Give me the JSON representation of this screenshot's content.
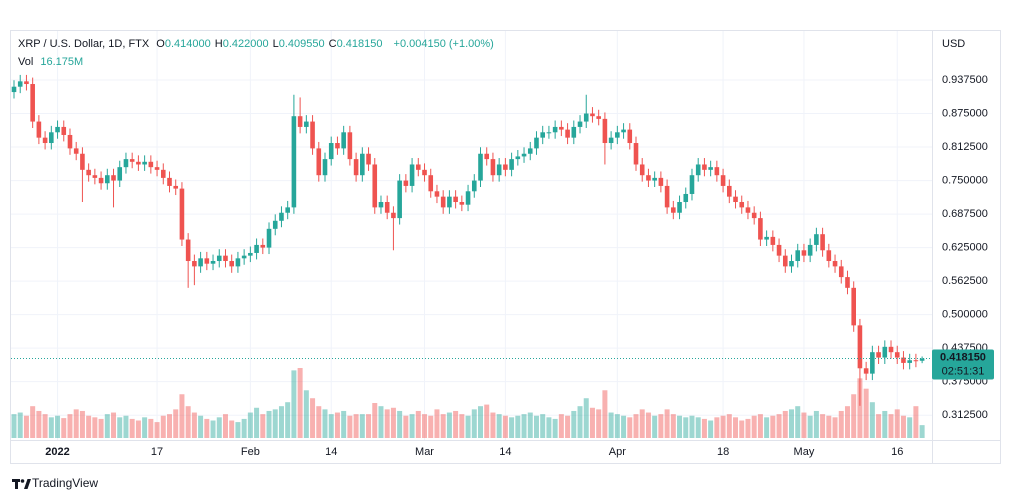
{
  "chart_data": {
    "type": "candlestick",
    "title": "XRP / U.S. Dollar, 1D, FTX",
    "ohlc_legend": [
      {
        "key": "O",
        "value": "0.414000"
      },
      {
        "key": "H",
        "value": "0.422000"
      },
      {
        "key": "L",
        "value": "0.409550"
      },
      {
        "key": "C",
        "value": "0.418150"
      }
    ],
    "change": "+0.004150 (+1.00%)",
    "volume_name": "Vol",
    "volume_label": "16.175M",
    "axis_currency": "USD",
    "last_price_label": "0.418150",
    "countdown": "02:51:31",
    "brand": "TradingView",
    "up_color": "#26a69a",
    "down_color": "#ef5350",
    "grid": true,
    "categories": [
      null,
      null,
      null,
      null,
      null,
      null,
      null,
      "2022",
      null,
      null,
      null,
      null,
      null,
      null,
      null,
      null,
      null,
      null,
      null,
      null,
      null,
      null,
      null,
      "17",
      null,
      null,
      null,
      null,
      null,
      null,
      null,
      null,
      null,
      null,
      null,
      null,
      null,
      null,
      "Feb",
      null,
      null,
      null,
      null,
      null,
      null,
      null,
      null,
      null,
      null,
      null,
      null,
      "14",
      null,
      null,
      null,
      null,
      null,
      null,
      null,
      null,
      null,
      null,
      null,
      null,
      null,
      null,
      "Mar",
      null,
      null,
      null,
      null,
      null,
      null,
      null,
      null,
      null,
      null,
      null,
      null,
      "14",
      null,
      null,
      null,
      null,
      null,
      null,
      null,
      null,
      null,
      null,
      null,
      null,
      null,
      null,
      null,
      null,
      null,
      "Apr",
      null,
      null,
      null,
      null,
      null,
      null,
      null,
      null,
      null,
      null,
      null,
      null,
      null,
      null,
      null,
      null,
      "18",
      null,
      null,
      null,
      null,
      null,
      null,
      null,
      null,
      null,
      null,
      null,
      null,
      "May",
      null,
      null,
      null,
      null,
      null,
      null,
      null,
      null,
      null,
      null,
      null,
      null,
      null,
      null,
      "16",
      null,
      null,
      null,
      null
    ],
    "open": [
      0.915,
      0.925,
      0.935,
      0.93,
      0.86,
      0.83,
      0.82,
      0.84,
      0.85,
      0.835,
      0.81,
      0.8,
      0.77,
      0.76,
      0.755,
      0.745,
      0.76,
      0.75,
      0.775,
      0.79,
      0.785,
      0.78,
      0.785,
      0.775,
      0.77,
      0.755,
      0.74,
      0.735,
      0.64,
      0.6,
      0.59,
      0.605,
      0.595,
      0.6,
      0.61,
      0.6,
      0.59,
      0.605,
      0.61,
      0.615,
      0.63,
      0.625,
      0.66,
      0.675,
      0.69,
      0.7,
      0.87,
      0.85,
      0.86,
      0.81,
      0.76,
      0.79,
      0.82,
      0.81,
      0.84,
      0.79,
      0.76,
      0.8,
      0.78,
      0.7,
      0.71,
      0.69,
      0.68,
      0.75,
      0.74,
      0.78,
      0.77,
      0.76,
      0.73,
      0.72,
      0.7,
      0.72,
      0.71,
      0.705,
      0.73,
      0.75,
      0.8,
      0.79,
      0.76,
      0.78,
      0.77,
      0.79,
      0.795,
      0.8,
      0.81,
      0.83,
      0.84,
      0.84,
      0.85,
      0.845,
      0.83,
      0.85,
      0.86,
      0.875,
      0.87,
      0.865,
      0.82,
      0.83,
      0.84,
      0.845,
      0.82,
      0.78,
      0.76,
      0.75,
      0.755,
      0.74,
      0.7,
      0.69,
      0.71,
      0.725,
      0.76,
      0.78,
      0.77,
      0.775,
      0.76,
      0.74,
      0.72,
      0.71,
      0.7,
      0.69,
      0.68,
      0.64,
      0.645,
      0.63,
      0.61,
      0.59,
      0.6,
      0.62,
      0.61,
      0.63,
      0.65,
      0.62,
      0.6,
      0.59,
      0.57,
      0.55,
      0.48,
      0.4,
      0.39,
      0.43,
      0.42,
      0.44,
      0.43,
      0.42,
      0.41,
      0.415,
      0.414
    ],
    "high": [
      0.937,
      0.947,
      0.947,
      0.942,
      0.872,
      0.842,
      0.852,
      0.862,
      0.862,
      0.847,
      0.822,
      0.812,
      0.782,
      0.772,
      0.767,
      0.772,
      0.772,
      0.787,
      0.802,
      0.802,
      0.797,
      0.797,
      0.797,
      0.787,
      0.782,
      0.767,
      0.752,
      0.747,
      0.652,
      0.612,
      0.617,
      0.617,
      0.612,
      0.622,
      0.622,
      0.612,
      0.617,
      0.622,
      0.627,
      0.642,
      0.642,
      0.672,
      0.687,
      0.702,
      0.712,
      0.91,
      0.905,
      0.872,
      0.872,
      0.822,
      0.802,
      0.832,
      0.832,
      0.852,
      0.852,
      0.802,
      0.812,
      0.812,
      0.792,
      0.722,
      0.722,
      0.702,
      0.762,
      0.762,
      0.792,
      0.792,
      0.782,
      0.772,
      0.742,
      0.732,
      0.732,
      0.732,
      0.722,
      0.742,
      0.762,
      0.812,
      0.812,
      0.802,
      0.792,
      0.792,
      0.802,
      0.807,
      0.812,
      0.822,
      0.842,
      0.852,
      0.852,
      0.862,
      0.862,
      0.857,
      0.862,
      0.872,
      0.91,
      0.887,
      0.882,
      0.877,
      0.842,
      0.852,
      0.857,
      0.857,
      0.832,
      0.792,
      0.772,
      0.767,
      0.767,
      0.752,
      0.712,
      0.722,
      0.737,
      0.772,
      0.792,
      0.792,
      0.787,
      0.787,
      0.772,
      0.752,
      0.732,
      0.722,
      0.712,
      0.702,
      0.692,
      0.657,
      0.657,
      0.642,
      0.622,
      0.612,
      0.632,
      0.632,
      0.642,
      0.662,
      0.662,
      0.632,
      0.612,
      0.602,
      0.582,
      0.562,
      0.492,
      0.412,
      0.442,
      0.442,
      0.452,
      0.452,
      0.442,
      0.432,
      0.427,
      0.427,
      0.422
    ],
    "low": [
      0.903,
      0.913,
      0.918,
      0.848,
      0.818,
      0.808,
      0.808,
      0.828,
      0.823,
      0.798,
      0.788,
      0.71,
      0.748,
      0.743,
      0.733,
      0.733,
      0.7,
      0.738,
      0.763,
      0.773,
      0.768,
      0.768,
      0.763,
      0.758,
      0.743,
      0.728,
      0.723,
      0.628,
      0.55,
      0.555,
      0.578,
      0.583,
      0.583,
      0.588,
      0.588,
      0.578,
      0.578,
      0.593,
      0.598,
      0.603,
      0.613,
      0.613,
      0.648,
      0.663,
      0.678,
      0.688,
      0.838,
      0.838,
      0.798,
      0.748,
      0.748,
      0.778,
      0.798,
      0.798,
      0.778,
      0.748,
      0.748,
      0.768,
      0.688,
      0.688,
      0.678,
      0.62,
      0.668,
      0.728,
      0.728,
      0.758,
      0.748,
      0.718,
      0.708,
      0.688,
      0.688,
      0.698,
      0.693,
      0.693,
      0.718,
      0.738,
      0.778,
      0.748,
      0.748,
      0.758,
      0.758,
      0.778,
      0.783,
      0.788,
      0.798,
      0.818,
      0.828,
      0.828,
      0.833,
      0.818,
      0.818,
      0.838,
      0.848,
      0.858,
      0.853,
      0.78,
      0.808,
      0.818,
      0.828,
      0.808,
      0.768,
      0.748,
      0.738,
      0.738,
      0.728,
      0.688,
      0.678,
      0.678,
      0.698,
      0.713,
      0.748,
      0.758,
      0.758,
      0.748,
      0.728,
      0.708,
      0.698,
      0.688,
      0.678,
      0.668,
      0.628,
      0.628,
      0.618,
      0.598,
      0.578,
      0.578,
      0.588,
      0.598,
      0.598,
      0.618,
      0.608,
      0.588,
      0.578,
      0.558,
      0.538,
      0.468,
      0.33,
      0.378,
      0.378,
      0.408,
      0.408,
      0.418,
      0.408,
      0.398,
      0.398,
      0.402,
      0.40955
    ],
    "close": [
      0.925,
      0.935,
      0.93,
      0.86,
      0.83,
      0.82,
      0.84,
      0.85,
      0.835,
      0.81,
      0.8,
      0.77,
      0.76,
      0.755,
      0.745,
      0.76,
      0.75,
      0.775,
      0.79,
      0.785,
      0.78,
      0.785,
      0.775,
      0.77,
      0.755,
      0.74,
      0.735,
      0.64,
      0.6,
      0.59,
      0.605,
      0.595,
      0.6,
      0.61,
      0.6,
      0.59,
      0.605,
      0.61,
      0.615,
      0.63,
      0.625,
      0.66,
      0.675,
      0.69,
      0.7,
      0.87,
      0.85,
      0.86,
      0.81,
      0.76,
      0.79,
      0.82,
      0.81,
      0.84,
      0.79,
      0.76,
      0.8,
      0.78,
      0.7,
      0.71,
      0.69,
      0.68,
      0.75,
      0.74,
      0.78,
      0.77,
      0.76,
      0.73,
      0.72,
      0.7,
      0.72,
      0.71,
      0.705,
      0.73,
      0.75,
      0.8,
      0.79,
      0.76,
      0.78,
      0.77,
      0.79,
      0.795,
      0.8,
      0.81,
      0.83,
      0.84,
      0.84,
      0.85,
      0.845,
      0.83,
      0.85,
      0.86,
      0.875,
      0.87,
      0.865,
      0.82,
      0.83,
      0.84,
      0.845,
      0.82,
      0.78,
      0.76,
      0.75,
      0.755,
      0.74,
      0.7,
      0.69,
      0.71,
      0.725,
      0.76,
      0.78,
      0.77,
      0.775,
      0.76,
      0.74,
      0.72,
      0.71,
      0.7,
      0.69,
      0.68,
      0.64,
      0.645,
      0.63,
      0.61,
      0.59,
      0.6,
      0.62,
      0.61,
      0.63,
      0.65,
      0.62,
      0.6,
      0.59,
      0.57,
      0.55,
      0.48,
      0.4,
      0.39,
      0.43,
      0.42,
      0.44,
      0.43,
      0.42,
      0.41,
      0.415,
      0.414,
      0.41815
    ],
    "volume": [
      30,
      32,
      28,
      40,
      34,
      30,
      26,
      28,
      25,
      30,
      36,
      34,
      28,
      26,
      24,
      30,
      32,
      26,
      28,
      24,
      22,
      26,
      24,
      20,
      28,
      30,
      36,
      55,
      40,
      32,
      28,
      24,
      22,
      26,
      30,
      22,
      20,
      24,
      32,
      38,
      30,
      34,
      36,
      40,
      45,
      85,
      88,
      60,
      50,
      40,
      36,
      30,
      32,
      34,
      28,
      30,
      30,
      30,
      44,
      40,
      36,
      38,
      34,
      28,
      30,
      34,
      30,
      28,
      36,
      30,
      32,
      34,
      30,
      28,
      36,
      40,
      42,
      32,
      30,
      28,
      26,
      28,
      30,
      32,
      28,
      30,
      26,
      24,
      30,
      28,
      34,
      40,
      50,
      38,
      36,
      60,
      32,
      30,
      28,
      26,
      30,
      36,
      32,
      28,
      30,
      36,
      30,
      28,
      26,
      28,
      26,
      24,
      22,
      26,
      28,
      30,
      26,
      22,
      24,
      28,
      30,
      26,
      28,
      30,
      34,
      36,
      40,
      32,
      28,
      34,
      30,
      28,
      26,
      34,
      40,
      55,
      75,
      62,
      45,
      30,
      34,
      30,
      36,
      28,
      26,
      40,
      16.175
    ],
    "ylim": [
      0.27,
      1.027
    ],
    "yticks": [
      {
        "value": 0.3125,
        "label": "0.312500"
      },
      {
        "value": 0.375,
        "label": "0.375000"
      },
      {
        "value": 0.4375,
        "label": "0.437500"
      },
      {
        "value": 0.5,
        "label": "0.500000"
      },
      {
        "value": 0.5625,
        "label": "0.562500"
      },
      {
        "value": 0.625,
        "label": "0.625000"
      },
      {
        "value": 0.6875,
        "label": "0.687500"
      },
      {
        "value": 0.75,
        "label": "0.750000"
      },
      {
        "value": 0.8125,
        "label": "0.812500"
      },
      {
        "value": 0.875,
        "label": "0.875000"
      },
      {
        "value": 0.9375,
        "label": "0.937500"
      }
    ]
  }
}
